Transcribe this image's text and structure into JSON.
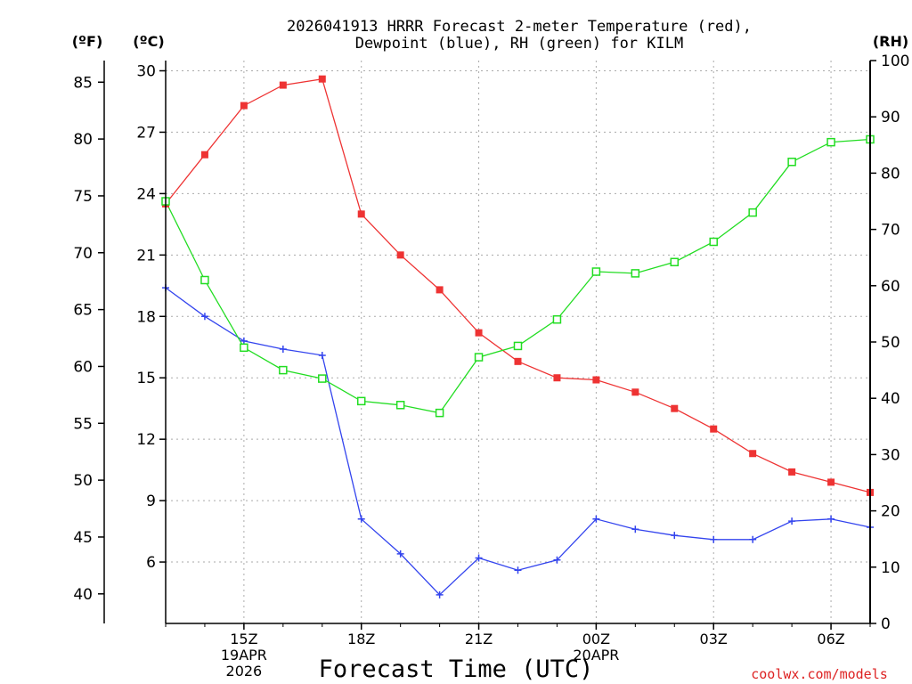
{
  "title_line1": "2026041913 HRRR Forecast 2-meter Temperature (red),",
  "title_line2": "Dewpoint (blue), RH (green) for KILM",
  "axis_unit_f": "(ºF)",
  "axis_unit_c": "(ºC)",
  "axis_unit_rh": "(RH)",
  "xlabel": "Forecast Time (UTC)",
  "watermark": "coolwx.com/models",
  "colors": {
    "temperature": "#ee3333",
    "dewpoint": "#3344ee",
    "rh": "#22dd22",
    "axis": "#000000",
    "grid": "#aaaaaa",
    "watermark": "#dd2222"
  },
  "chart_data": {
    "type": "line",
    "title": "2026041913 HRRR Forecast 2-meter Temperature (red), Dewpoint (blue), RH (green) for KILM",
    "xlabel": "Forecast Time (UTC)",
    "x_hours": [
      0,
      1,
      2,
      3,
      4,
      5,
      6,
      7,
      8,
      9,
      10,
      11,
      12,
      13,
      14,
      15,
      16,
      17,
      18
    ],
    "xlim": [
      0,
      18
    ],
    "x_ticks": [
      {
        "hour": 2,
        "labels": [
          "15Z",
          "19APR",
          "2026"
        ]
      },
      {
        "hour": 5,
        "labels": [
          "18Z"
        ]
      },
      {
        "hour": 8,
        "labels": [
          "21Z"
        ]
      },
      {
        "hour": 11,
        "labels": [
          "00Z",
          "20APR"
        ]
      },
      {
        "hour": 14,
        "labels": [
          "03Z"
        ]
      },
      {
        "hour": 17,
        "labels": [
          "06Z"
        ]
      }
    ],
    "y_left_f": {
      "label": "(ºF)",
      "ticks": [
        40,
        45,
        50,
        55,
        60,
        65,
        70,
        75,
        80,
        85
      ]
    },
    "y_left_c": {
      "label": "(ºC)",
      "ylim": [
        3.0,
        30.5
      ],
      "ticks": [
        6,
        9,
        12,
        15,
        18,
        21,
        24,
        27,
        30
      ]
    },
    "y_right_rh": {
      "label": "(RH)",
      "ylim": [
        0,
        100
      ],
      "ticks": [
        0,
        10,
        20,
        30,
        40,
        50,
        60,
        70,
        80,
        90,
        100
      ]
    },
    "series": [
      {
        "name": "Temperature",
        "axis": "C",
        "marker": "filled-square",
        "values": [
          23.5,
          25.9,
          28.3,
          29.3,
          29.6,
          23.0,
          21.0,
          19.3,
          17.2,
          15.8,
          15.0,
          14.9,
          14.3,
          13.5,
          12.5,
          11.3,
          10.4,
          9.9,
          9.4
        ]
      },
      {
        "name": "Dewpoint",
        "axis": "C",
        "marker": "plus",
        "values": [
          19.4,
          18.0,
          16.8,
          16.4,
          16.1,
          8.1,
          6.4,
          4.4,
          6.2,
          5.6,
          6.1,
          8.1,
          7.6,
          7.3,
          7.1,
          7.1,
          8.0,
          8.1,
          7.7
        ]
      },
      {
        "name": "RH",
        "axis": "RH",
        "marker": "open-square",
        "values": [
          75,
          61,
          49,
          45,
          43.5,
          39.5,
          38.8,
          37.4,
          47.3,
          49.3,
          54,
          62.5,
          62.2,
          64.2,
          67.8,
          73,
          82,
          85.5,
          86
        ]
      }
    ]
  }
}
